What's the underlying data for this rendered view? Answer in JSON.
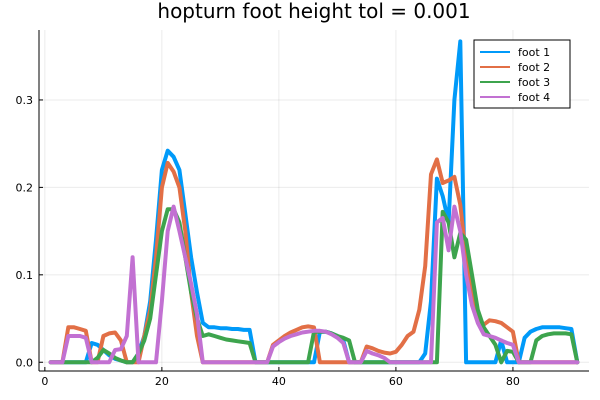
{
  "chart_data": {
    "type": "line",
    "title": "hopturn foot height tol = 0.001",
    "xlabel": "",
    "ylabel": "",
    "xlim": [
      -1,
      93
    ],
    "ylim": [
      -0.01,
      0.38
    ],
    "x_ticks": [
      0,
      20,
      40,
      60,
      80
    ],
    "x_tick_labels": [
      "0",
      "20",
      "40",
      "60",
      "80"
    ],
    "y_ticks": [
      0.0,
      0.1,
      0.2,
      0.3
    ],
    "y_tick_labels": [
      "0.0",
      "0.1",
      "0.2",
      "0.3"
    ],
    "grid": true,
    "legend_position": "top-right",
    "series": [
      {
        "name": "foot 1",
        "color": "#009af9",
        "x": [
          1,
          2,
          3,
          4,
          5,
          6,
          7,
          8,
          9,
          10,
          11,
          12,
          13,
          14,
          15,
          16,
          17,
          18,
          19,
          20,
          21,
          22,
          23,
          24,
          25,
          26,
          27,
          28,
          29,
          30,
          31,
          32,
          33,
          34,
          35,
          36,
          37,
          38,
          39,
          40,
          41,
          42,
          43,
          44,
          45,
          46,
          47,
          48,
          49,
          50,
          51,
          52,
          53,
          54,
          55,
          56,
          57,
          58,
          59,
          60,
          61,
          62,
          63,
          64,
          65,
          66,
          67,
          68,
          69,
          70,
          71,
          72,
          73,
          74,
          75,
          76,
          77,
          78,
          79,
          80,
          81,
          82,
          83,
          84,
          85,
          86,
          87,
          88,
          89,
          90,
          91
        ],
        "y": [
          0.0,
          0.0,
          0.0,
          0.0,
          0.0,
          0.0,
          0.0,
          0.022,
          0.02,
          0.014,
          0.008,
          0.004,
          0.002,
          0.0,
          0.0,
          0.01,
          0.03,
          0.07,
          0.14,
          0.22,
          0.242,
          0.235,
          0.22,
          0.17,
          0.12,
          0.08,
          0.045,
          0.04,
          0.04,
          0.039,
          0.039,
          0.038,
          0.038,
          0.037,
          0.037,
          0.0,
          0.0,
          0.0,
          0.0,
          0.0,
          0.0,
          0.0,
          0.0,
          0.0,
          0.0,
          0.0,
          0.035,
          0.035,
          0.033,
          0.03,
          0.025,
          0.0,
          0.0,
          0.0,
          0.0,
          0.0,
          0.0,
          0.0,
          0.0,
          0.0,
          0.0,
          0.0,
          0.0,
          0.0,
          0.01,
          0.07,
          0.21,
          0.19,
          0.16,
          0.3,
          0.367,
          0.0,
          0.0,
          0.0,
          0.0,
          0.0,
          0.0,
          0.025,
          0.0,
          0.0,
          0.0,
          0.028,
          0.035,
          0.038,
          0.04,
          0.04,
          0.04,
          0.04,
          0.039,
          0.038,
          0.0
        ]
      },
      {
        "name": "foot 2",
        "color": "#e26f46",
        "x": [
          1,
          2,
          3,
          4,
          5,
          6,
          7,
          8,
          9,
          10,
          11,
          12,
          13,
          14,
          15,
          16,
          17,
          18,
          19,
          20,
          21,
          22,
          23,
          24,
          25,
          26,
          27,
          28,
          29,
          30,
          31,
          32,
          33,
          34,
          35,
          36,
          37,
          38,
          39,
          40,
          41,
          42,
          43,
          44,
          45,
          46,
          47,
          48,
          49,
          50,
          51,
          52,
          53,
          54,
          55,
          56,
          57,
          58,
          59,
          60,
          61,
          62,
          63,
          64,
          65,
          66,
          67,
          68,
          69,
          70,
          71,
          72,
          73,
          74,
          75,
          76,
          77,
          78,
          79,
          80,
          81,
          82,
          83,
          84,
          85,
          86,
          87,
          88,
          89,
          90,
          91
        ],
        "y": [
          0.0,
          0.0,
          0.0,
          0.04,
          0.04,
          0.038,
          0.036,
          0.0,
          0.0,
          0.03,
          0.033,
          0.034,
          0.025,
          0.0,
          0.0,
          0.0,
          0.03,
          0.06,
          0.12,
          0.2,
          0.228,
          0.218,
          0.2,
          0.15,
          0.08,
          0.03,
          0.0,
          0.0,
          0.0,
          0.0,
          0.0,
          0.0,
          0.0,
          0.0,
          0.0,
          0.0,
          0.0,
          0.0,
          0.02,
          0.025,
          0.03,
          0.034,
          0.037,
          0.04,
          0.041,
          0.04,
          0.0,
          0.0,
          0.0,
          0.0,
          0.0,
          0.0,
          0.0,
          0.0,
          0.018,
          0.016,
          0.013,
          0.011,
          0.01,
          0.012,
          0.02,
          0.03,
          0.035,
          0.06,
          0.11,
          0.215,
          0.232,
          0.205,
          0.208,
          0.212,
          0.18,
          0.12,
          0.08,
          0.05,
          0.043,
          0.048,
          0.047,
          0.045,
          0.04,
          0.035,
          0.0,
          0.0,
          0.0,
          0.0,
          0.0,
          0.0,
          0.0,
          0.0,
          0.0,
          0.0,
          0.0
        ]
      },
      {
        "name": "foot 3",
        "color": "#3da44d",
        "x": [
          1,
          2,
          3,
          4,
          5,
          6,
          7,
          8,
          9,
          10,
          11,
          12,
          13,
          14,
          15,
          16,
          17,
          18,
          19,
          20,
          21,
          22,
          23,
          24,
          25,
          26,
          27,
          28,
          29,
          30,
          31,
          32,
          33,
          34,
          35,
          36,
          37,
          38,
          39,
          40,
          41,
          42,
          43,
          44,
          45,
          46,
          47,
          48,
          49,
          50,
          51,
          52,
          53,
          54,
          55,
          56,
          57,
          58,
          59,
          60,
          61,
          62,
          63,
          64,
          65,
          66,
          67,
          68,
          69,
          70,
          71,
          72,
          73,
          74,
          75,
          76,
          77,
          78,
          79,
          80,
          81,
          82,
          83,
          84,
          85,
          86,
          87,
          88,
          89,
          90,
          91
        ],
        "y": [
          0.0,
          0.0,
          0.0,
          0.0,
          0.0,
          0.0,
          0.0,
          0.0,
          0.005,
          0.014,
          0.01,
          0.005,
          0.002,
          0.0,
          0.0,
          0.01,
          0.025,
          0.05,
          0.1,
          0.15,
          0.175,
          0.175,
          0.16,
          0.12,
          0.08,
          0.05,
          0.03,
          0.032,
          0.03,
          0.028,
          0.026,
          0.025,
          0.024,
          0.023,
          0.022,
          0.0,
          0.0,
          0.0,
          0.0,
          0.0,
          0.0,
          0.0,
          0.0,
          0.0,
          0.0,
          0.035,
          0.035,
          0.035,
          0.033,
          0.03,
          0.028,
          0.025,
          0.0,
          0.0,
          0.0,
          0.0,
          0.0,
          0.0,
          0.0,
          0.0,
          0.0,
          0.0,
          0.0,
          0.0,
          0.0,
          0.0,
          0.0,
          0.172,
          0.16,
          0.12,
          0.148,
          0.14,
          0.1,
          0.06,
          0.04,
          0.03,
          0.02,
          0.0,
          0.013,
          0.012,
          0.0,
          0.0,
          0.0,
          0.025,
          0.03,
          0.032,
          0.033,
          0.033,
          0.033,
          0.032,
          0.0
        ]
      },
      {
        "name": "foot 4",
        "color": "#c271d2",
        "x": [
          1,
          2,
          3,
          4,
          5,
          6,
          7,
          8,
          9,
          10,
          11,
          12,
          13,
          14,
          15,
          16,
          17,
          18,
          19,
          20,
          21,
          22,
          23,
          24,
          25,
          26,
          27,
          28,
          29,
          30,
          31,
          32,
          33,
          34,
          35,
          36,
          37,
          38,
          39,
          40,
          41,
          42,
          43,
          44,
          45,
          46,
          47,
          48,
          49,
          50,
          51,
          52,
          53,
          54,
          55,
          56,
          57,
          58,
          59,
          60,
          61,
          62,
          63,
          64,
          65,
          66,
          67,
          68,
          69,
          70,
          71,
          72,
          73,
          74,
          75,
          76,
          77,
          78,
          79,
          80,
          81,
          82,
          83,
          84,
          85,
          86,
          87,
          88,
          89,
          90,
          91
        ],
        "y": [
          0.0,
          0.0,
          0.0,
          0.03,
          0.03,
          0.03,
          0.028,
          0.0,
          0.0,
          0.0,
          0.0,
          0.014,
          0.015,
          0.03,
          0.12,
          0.0,
          0.0,
          0.0,
          0.0,
          0.07,
          0.15,
          0.178,
          0.15,
          0.12,
          0.09,
          0.055,
          0.0,
          0.0,
          0.0,
          0.0,
          0.0,
          0.0,
          0.0,
          0.0,
          0.0,
          0.0,
          0.0,
          0.0,
          0.018,
          0.023,
          0.027,
          0.03,
          0.032,
          0.034,
          0.035,
          0.036,
          0.036,
          0.035,
          0.032,
          0.028,
          0.022,
          0.0,
          0.0,
          0.0,
          0.013,
          0.01,
          0.008,
          0.005,
          0.0,
          0.0,
          0.0,
          0.0,
          0.0,
          0.0,
          0.0,
          0.0,
          0.16,
          0.165,
          0.128,
          0.178,
          0.15,
          0.1,
          0.065,
          0.045,
          0.032,
          0.03,
          0.028,
          0.025,
          0.022,
          0.02,
          0.0,
          0.0,
          0.0,
          0.0,
          0.0,
          0.0,
          0.0,
          0.0,
          0.0,
          0.0,
          0.0
        ]
      }
    ]
  }
}
